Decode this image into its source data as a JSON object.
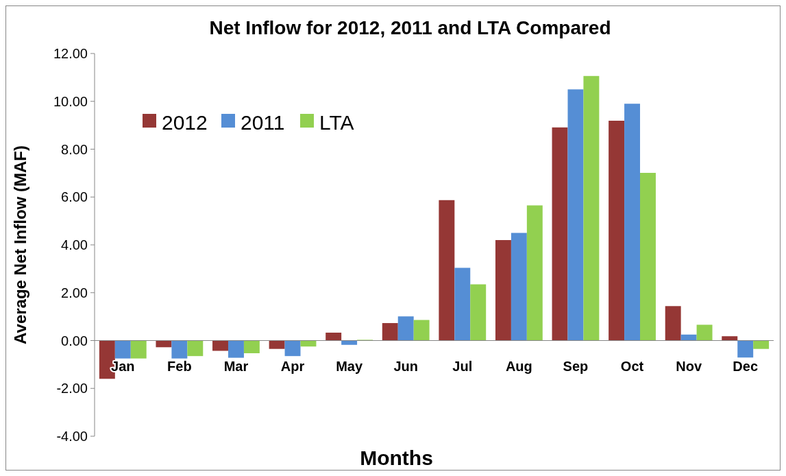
{
  "chart_data": {
    "type": "bar",
    "title": "Net Inflow for 2012, 2011 and LTA Compared",
    "xlabel": "Months",
    "ylabel": "Average Net Inflow (MAF)",
    "categories": [
      "Jan",
      "Feb",
      "Mar",
      "Apr",
      "May",
      "Jun",
      "Jul",
      "Aug",
      "Sep",
      "Oct",
      "Nov",
      "Dec"
    ],
    "series": [
      {
        "name": "2012",
        "color": "#953735",
        "values": [
          -1.6,
          -0.28,
          -0.43,
          -0.35,
          0.33,
          0.73,
          5.87,
          4.2,
          8.91,
          9.19,
          1.44,
          0.18
        ]
      },
      {
        "name": "2011",
        "color": "#558ed5",
        "values": [
          -0.75,
          -0.75,
          -0.72,
          -0.65,
          -0.18,
          1.01,
          3.04,
          4.5,
          10.5,
          9.9,
          0.25,
          -0.71
        ]
      },
      {
        "name": "LTA",
        "color": "#92d050",
        "values": [
          -0.75,
          -0.65,
          -0.53,
          -0.25,
          0.03,
          0.86,
          2.35,
          5.65,
          11.06,
          7.01,
          0.66,
          -0.35
        ]
      }
    ],
    "ylim": [
      -4,
      12
    ],
    "yticks": [
      {
        "value": -4,
        "label": "-4.00"
      },
      {
        "value": -2,
        "label": "-2.00"
      },
      {
        "value": 0,
        "label": "0.00"
      },
      {
        "value": 2,
        "label": "2.00"
      },
      {
        "value": 4,
        "label": "4.00"
      },
      {
        "value": 6,
        "label": "6.00"
      },
      {
        "value": 8,
        "label": "8.00"
      },
      {
        "value": 10,
        "label": "10.00"
      },
      {
        "value": 12,
        "label": "12.00"
      }
    ],
    "grid": false,
    "legend": "top left"
  }
}
